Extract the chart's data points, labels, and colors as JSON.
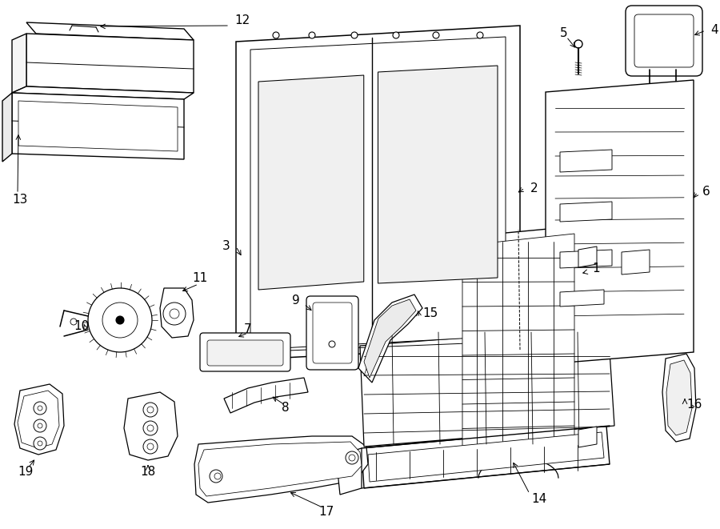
{
  "bg": "#ffffff",
  "lc": "#000000",
  "fw": 9.0,
  "fh": 6.61,
  "dpi": 100
}
